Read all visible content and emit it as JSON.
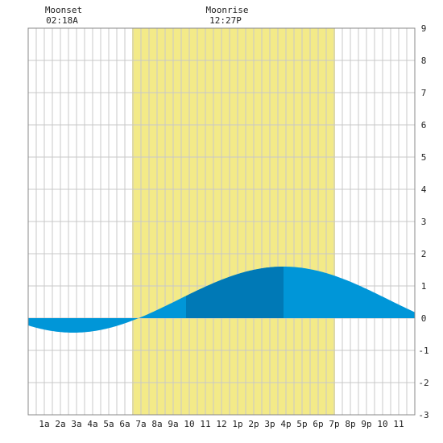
{
  "chart_data": {
    "type": "area",
    "title": "",
    "xlabel": "",
    "ylabel": "",
    "xlim": [
      0,
      24
    ],
    "ylim": [
      -3,
      9
    ],
    "grid": true,
    "x_ticks": [
      {
        "x": 1,
        "label": "1a"
      },
      {
        "x": 2,
        "label": "2a"
      },
      {
        "x": 3,
        "label": "3a"
      },
      {
        "x": 4,
        "label": "4a"
      },
      {
        "x": 5,
        "label": "5a"
      },
      {
        "x": 6,
        "label": "6a"
      },
      {
        "x": 7,
        "label": "7a"
      },
      {
        "x": 8,
        "label": "8a"
      },
      {
        "x": 9,
        "label": "9a"
      },
      {
        "x": 10,
        "label": "10"
      },
      {
        "x": 11,
        "label": "11"
      },
      {
        "x": 12,
        "label": "12"
      },
      {
        "x": 13,
        "label": "1p"
      },
      {
        "x": 14,
        "label": "2p"
      },
      {
        "x": 15,
        "label": "3p"
      },
      {
        "x": 16,
        "label": "4p"
      },
      {
        "x": 17,
        "label": "5p"
      },
      {
        "x": 18,
        "label": "6p"
      },
      {
        "x": 19,
        "label": "7p"
      },
      {
        "x": 20,
        "label": "8p"
      },
      {
        "x": 21,
        "label": "9p"
      },
      {
        "x": 22,
        "label": "10"
      },
      {
        "x": 23,
        "label": "11"
      }
    ],
    "y_ticks": [
      9,
      8,
      7,
      6,
      5,
      4,
      3,
      2,
      1,
      0,
      -1,
      -2,
      -3
    ],
    "daylight": {
      "start": 6.45,
      "end": 19.05,
      "color": "#f3ea88"
    },
    "low_tide": {
      "x": 2.8,
      "y": -0.45
    },
    "high_tide": {
      "x": 15.85,
      "y": 1.6
    },
    "tide_colors": {
      "light": "#0096d8",
      "dark": "#0079b6"
    },
    "highlight_band": {
      "start": 9.8,
      "end": 15.85
    },
    "moon_events": [
      {
        "event": "Moonset",
        "time": "02:18A",
        "x": 2.3
      },
      {
        "event": "Moonrise",
        "time": "12:27P",
        "x": 12.45
      }
    ]
  }
}
